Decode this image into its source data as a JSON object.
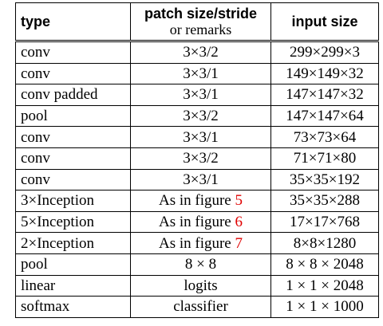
{
  "table": {
    "headers": {
      "type": "type",
      "patch_line1": "patch size/stride",
      "patch_line2": "or remarks",
      "input": "input size"
    },
    "rows": [
      {
        "type": "conv",
        "patch": "3×3/2",
        "ref": "",
        "input": "299×299×3"
      },
      {
        "type": "conv",
        "patch": "3×3/1",
        "ref": "",
        "input": "149×149×32"
      },
      {
        "type": "conv padded",
        "patch": "3×3/1",
        "ref": "",
        "input": "147×147×32"
      },
      {
        "type": "pool",
        "patch": "3×3/2",
        "ref": "",
        "input": "147×147×64"
      },
      {
        "type": "conv",
        "patch": "3×3/1",
        "ref": "",
        "input": "73×73×64"
      },
      {
        "type": "conv",
        "patch": "3×3/2",
        "ref": "",
        "input": "71×71×80"
      },
      {
        "type": "conv",
        "patch": "3×3/1",
        "ref": "",
        "input": "35×35×192"
      },
      {
        "type": "3×Inception",
        "patch": "As in figure ",
        "ref": "5",
        "input": "35×35×288"
      },
      {
        "type": "5×Inception",
        "patch": "As in figure ",
        "ref": "6",
        "input": "17×17×768"
      },
      {
        "type": "2×Inception",
        "patch": "As in figure ",
        "ref": "7",
        "input": "8×8×1280"
      },
      {
        "type": "pool",
        "patch": "8 × 8",
        "ref": "",
        "input": "8 × 8 × 2048"
      },
      {
        "type": "linear",
        "patch": "logits",
        "ref": "",
        "input": "1 × 1 × 2048"
      },
      {
        "type": "softmax",
        "patch": "classifier",
        "ref": "",
        "input": "1 × 1 × 1000"
      }
    ]
  }
}
